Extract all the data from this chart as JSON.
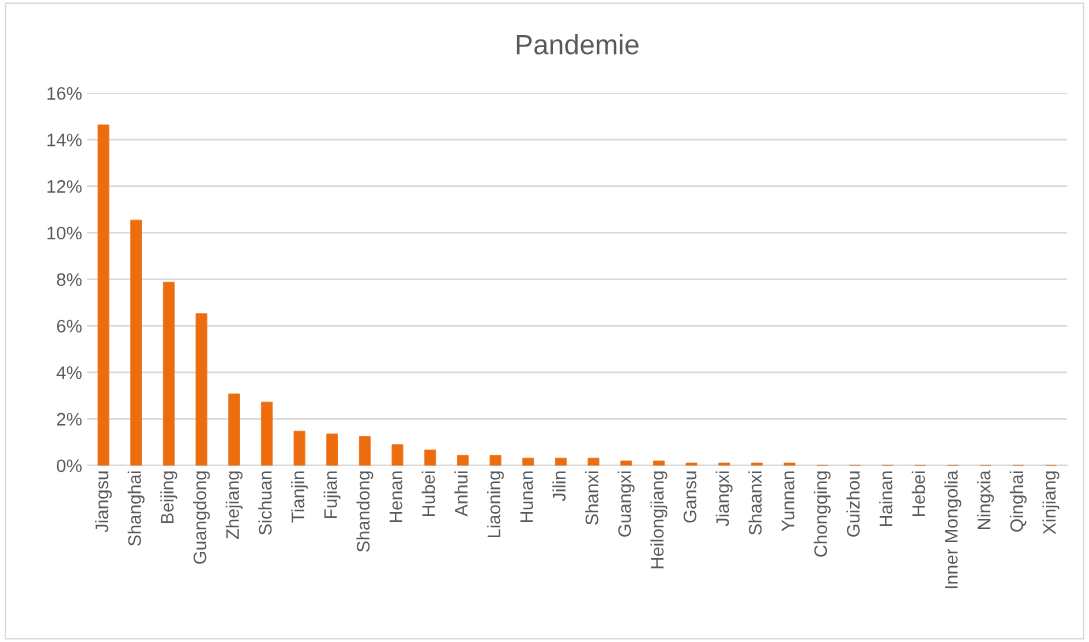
{
  "chart_data": {
    "type": "bar",
    "title": "Pandemie",
    "categories": [
      "Jiangsu",
      "Shanghai",
      "Beijing",
      "Guangdong",
      "Zhejiang",
      "Sichuan",
      "Tianjin",
      "Fujian",
      "Shandong",
      "Henan",
      "Hubei",
      "Anhui",
      "Liaoning",
      "Hunan",
      "Jilin",
      "Shanxi",
      "Guangxi",
      "Heilongjiang",
      "Gansu",
      "Jiangxi",
      "Shaanxi",
      "Yunnan",
      "Chongqing",
      "Guizhou",
      "Hainan",
      "Hebei",
      "Inner Mongolia",
      "Ningxia",
      "Qinghai",
      "Xinjiang"
    ],
    "values": [
      14.63,
      10.54,
      7.87,
      6.52,
      3.07,
      2.72,
      1.47,
      1.35,
      1.24,
      0.89,
      0.66,
      0.43,
      0.43,
      0.31,
      0.31,
      0.31,
      0.19,
      0.19,
      0.1,
      0.1,
      0.1,
      0.1,
      0,
      0,
      0,
      0,
      0,
      0,
      0,
      0
    ],
    "color": "#ec6c0e",
    "ylim": [
      0,
      16
    ],
    "yticks": [
      {
        "value": 0,
        "label": "0%"
      },
      {
        "value": 2,
        "label": "2%"
      },
      {
        "value": 4,
        "label": "4%"
      },
      {
        "value": 6,
        "label": "6%"
      },
      {
        "value": 8,
        "label": "8%"
      },
      {
        "value": 10,
        "label": "10%"
      },
      {
        "value": 12,
        "label": "12%"
      },
      {
        "value": 14,
        "label": "14%"
      },
      {
        "value": 16,
        "label": "16%"
      }
    ],
    "grid": "y"
  }
}
